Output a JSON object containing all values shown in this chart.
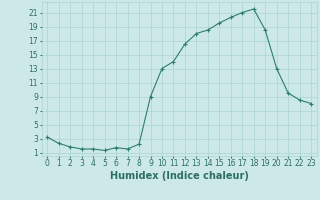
{
  "x": [
    0,
    1,
    2,
    3,
    4,
    5,
    6,
    7,
    8,
    9,
    10,
    11,
    12,
    13,
    14,
    15,
    16,
    17,
    18,
    19,
    20,
    21,
    22,
    23
  ],
  "y": [
    3.2,
    2.3,
    1.8,
    1.5,
    1.5,
    1.3,
    1.7,
    1.5,
    2.2,
    9.0,
    13.0,
    14.0,
    16.5,
    18.0,
    18.5,
    19.5,
    20.3,
    21.0,
    21.5,
    18.5,
    13.0,
    9.5,
    8.5,
    8.0
  ],
  "line_color": "#2d7d6e",
  "marker": "+",
  "marker_size": 3,
  "marker_linewidth": 0.8,
  "line_width": 0.8,
  "background_color": "#cce9e7",
  "grid_color": "#aad4d1",
  "xlabel": "Humidex (Indice chaleur)",
  "xlim": [
    -0.5,
    23.5
  ],
  "ylim": [
    0.5,
    22.5
  ],
  "yticks": [
    1,
    3,
    5,
    7,
    9,
    11,
    13,
    15,
    17,
    19,
    21
  ],
  "xticks": [
    0,
    1,
    2,
    3,
    4,
    5,
    6,
    7,
    8,
    9,
    10,
    11,
    12,
    13,
    14,
    15,
    16,
    17,
    18,
    19,
    20,
    21,
    22,
    23
  ],
  "font_color": "#2d6e65",
  "tick_fontsize": 5.5,
  "label_fontsize": 7
}
